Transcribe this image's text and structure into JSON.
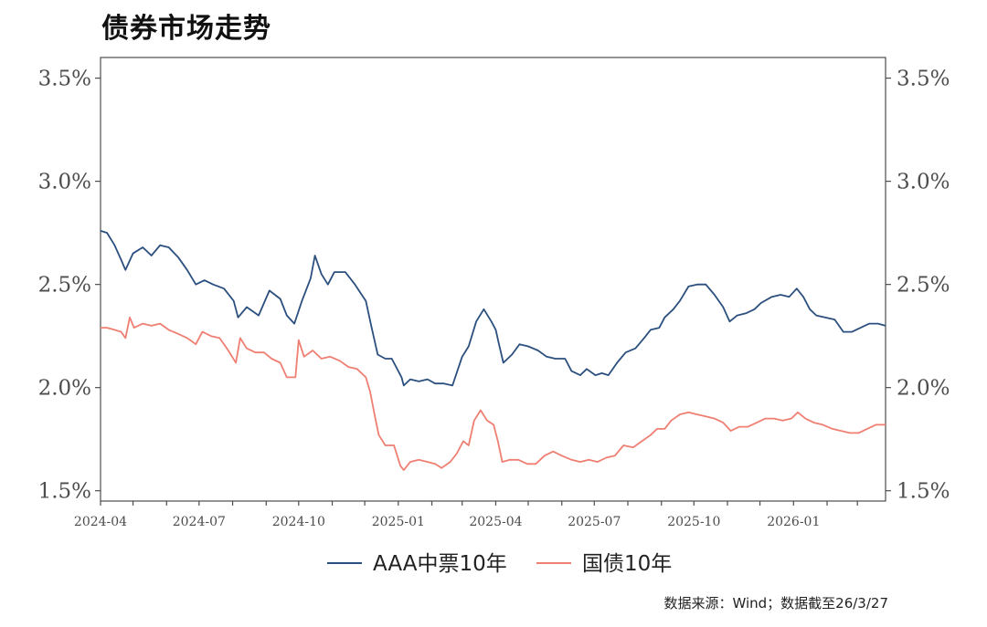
{
  "chart_data": {
    "type": "line",
    "title": "债券市场走势",
    "x_start": "2024-04-01",
    "x_end": "2026-03-27",
    "x_ticks": [
      "2024-04",
      "2024-07",
      "2024-10",
      "2025-01",
      "2025-04",
      "2025-07",
      "2025-10",
      "2026-01"
    ],
    "y_ticks": [
      "1.5%",
      "2.0%",
      "2.5%",
      "3.0%",
      "3.5%"
    ],
    "y_tick_values": [
      1.5,
      2.0,
      2.5,
      3.0,
      3.5
    ],
    "ylim": [
      1.45,
      3.6
    ],
    "grid": false,
    "legend_position": "bottom",
    "series": [
      {
        "name": "AAA中票10年",
        "color": "#2b4f7e",
        "points": [
          [
            "2024-04-01",
            2.76
          ],
          [
            "2024-04-07",
            2.75
          ],
          [
            "2024-04-14",
            2.69
          ],
          [
            "2024-04-20",
            2.62
          ],
          [
            "2024-04-24",
            2.57
          ],
          [
            "2024-05-01",
            2.65
          ],
          [
            "2024-05-10",
            2.68
          ],
          [
            "2024-05-18",
            2.64
          ],
          [
            "2024-05-26",
            2.69
          ],
          [
            "2024-06-03",
            2.68
          ],
          [
            "2024-06-12",
            2.63
          ],
          [
            "2024-06-20",
            2.57
          ],
          [
            "2024-06-28",
            2.5
          ],
          [
            "2024-07-06",
            2.52
          ],
          [
            "2024-07-14",
            2.5
          ],
          [
            "2024-07-24",
            2.48
          ],
          [
            "2024-08-02",
            2.42
          ],
          [
            "2024-08-06",
            2.34
          ],
          [
            "2024-08-14",
            2.39
          ],
          [
            "2024-08-25",
            2.35
          ],
          [
            "2024-09-04",
            2.47
          ],
          [
            "2024-09-14",
            2.43
          ],
          [
            "2024-09-20",
            2.35
          ],
          [
            "2024-09-27",
            2.31
          ],
          [
            "2024-10-04",
            2.42
          ],
          [
            "2024-10-12",
            2.53
          ],
          [
            "2024-10-16",
            2.64
          ],
          [
            "2024-10-22",
            2.55
          ],
          [
            "2024-10-28",
            2.5
          ],
          [
            "2024-11-03",
            2.56
          ],
          [
            "2024-11-13",
            2.56
          ],
          [
            "2024-11-22",
            2.5
          ],
          [
            "2024-12-02",
            2.42
          ],
          [
            "2024-12-07",
            2.3
          ],
          [
            "2024-12-13",
            2.16
          ],
          [
            "2024-12-20",
            2.14
          ],
          [
            "2024-12-26",
            2.14
          ],
          [
            "2025-01-04",
            2.05
          ],
          [
            "2025-01-06",
            2.01
          ],
          [
            "2025-01-12",
            2.04
          ],
          [
            "2025-01-20",
            2.03
          ],
          [
            "2025-01-28",
            2.04
          ],
          [
            "2025-02-04",
            2.02
          ],
          [
            "2025-02-12",
            2.02
          ],
          [
            "2025-02-20",
            2.01
          ],
          [
            "2025-03-01",
            2.15
          ],
          [
            "2025-03-07",
            2.2
          ],
          [
            "2025-03-14",
            2.32
          ],
          [
            "2025-03-21",
            2.38
          ],
          [
            "2025-03-28",
            2.32
          ],
          [
            "2025-04-01",
            2.28
          ],
          [
            "2025-04-04",
            2.21
          ],
          [
            "2025-04-08",
            2.12
          ],
          [
            "2025-04-16",
            2.16
          ],
          [
            "2025-04-23",
            2.21
          ],
          [
            "2025-05-01",
            2.2
          ],
          [
            "2025-05-10",
            2.18
          ],
          [
            "2025-05-18",
            2.15
          ],
          [
            "2025-05-26",
            2.14
          ],
          [
            "2025-06-04",
            2.14
          ],
          [
            "2025-06-10",
            2.08
          ],
          [
            "2025-06-18",
            2.06
          ],
          [
            "2025-06-24",
            2.09
          ],
          [
            "2025-07-02",
            2.06
          ],
          [
            "2025-07-08",
            2.07
          ],
          [
            "2025-07-14",
            2.06
          ],
          [
            "2025-07-22",
            2.12
          ],
          [
            "2025-07-30",
            2.17
          ],
          [
            "2025-08-08",
            2.19
          ],
          [
            "2025-08-16",
            2.24
          ],
          [
            "2025-08-22",
            2.28
          ],
          [
            "2025-08-30",
            2.29
          ],
          [
            "2025-09-04",
            2.34
          ],
          [
            "2025-09-12",
            2.38
          ],
          [
            "2025-09-18",
            2.42
          ],
          [
            "2025-09-26",
            2.49
          ],
          [
            "2025-10-04",
            2.5
          ],
          [
            "2025-10-12",
            2.5
          ],
          [
            "2025-10-20",
            2.45
          ],
          [
            "2025-10-28",
            2.39
          ],
          [
            "2025-11-03",
            2.32
          ],
          [
            "2025-11-10",
            2.35
          ],
          [
            "2025-11-18",
            2.36
          ],
          [
            "2025-11-26",
            2.38
          ],
          [
            "2025-12-02",
            2.41
          ],
          [
            "2025-12-12",
            2.44
          ],
          [
            "2025-12-20",
            2.45
          ],
          [
            "2025-12-28",
            2.44
          ],
          [
            "2026-01-04",
            2.48
          ],
          [
            "2026-01-10",
            2.44
          ],
          [
            "2026-01-16",
            2.38
          ],
          [
            "2026-01-22",
            2.35
          ],
          [
            "2026-01-30",
            2.34
          ],
          [
            "2026-02-08",
            2.33
          ],
          [
            "2026-02-16",
            2.27
          ],
          [
            "2026-02-24",
            2.27
          ],
          [
            "2026-03-04",
            2.29
          ],
          [
            "2026-03-12",
            2.31
          ],
          [
            "2026-03-20",
            2.31
          ],
          [
            "2026-03-27",
            2.3
          ]
        ]
      },
      {
        "name": "国债10年",
        "color": "#ef7f72",
        "points": [
          [
            "2024-04-01",
            2.29
          ],
          [
            "2024-04-07",
            2.29
          ],
          [
            "2024-04-14",
            2.28
          ],
          [
            "2024-04-20",
            2.27
          ],
          [
            "2024-04-24",
            2.24
          ],
          [
            "2024-04-28",
            2.34
          ],
          [
            "2024-05-02",
            2.29
          ],
          [
            "2024-05-10",
            2.31
          ],
          [
            "2024-05-18",
            2.3
          ],
          [
            "2024-05-26",
            2.31
          ],
          [
            "2024-06-03",
            2.28
          ],
          [
            "2024-06-12",
            2.26
          ],
          [
            "2024-06-20",
            2.24
          ],
          [
            "2024-06-28",
            2.21
          ],
          [
            "2024-07-04",
            2.27
          ],
          [
            "2024-07-12",
            2.25
          ],
          [
            "2024-07-20",
            2.24
          ],
          [
            "2024-07-28",
            2.18
          ],
          [
            "2024-08-04",
            2.12
          ],
          [
            "2024-08-08",
            2.24
          ],
          [
            "2024-08-14",
            2.19
          ],
          [
            "2024-08-22",
            2.17
          ],
          [
            "2024-08-30",
            2.17
          ],
          [
            "2024-09-06",
            2.14
          ],
          [
            "2024-09-14",
            2.12
          ],
          [
            "2024-09-20",
            2.05
          ],
          [
            "2024-09-28",
            2.05
          ],
          [
            "2024-10-01",
            2.23
          ],
          [
            "2024-10-06",
            2.15
          ],
          [
            "2024-10-14",
            2.18
          ],
          [
            "2024-10-22",
            2.14
          ],
          [
            "2024-10-30",
            2.15
          ],
          [
            "2024-11-08",
            2.13
          ],
          [
            "2024-11-16",
            2.1
          ],
          [
            "2024-11-24",
            2.09
          ],
          [
            "2024-12-02",
            2.05
          ],
          [
            "2024-12-06",
            1.98
          ],
          [
            "2024-12-10",
            1.87
          ],
          [
            "2024-12-14",
            1.77
          ],
          [
            "2024-12-20",
            1.72
          ],
          [
            "2024-12-28",
            1.72
          ],
          [
            "2025-01-03",
            1.62
          ],
          [
            "2025-01-06",
            1.6
          ],
          [
            "2025-01-12",
            1.64
          ],
          [
            "2025-01-20",
            1.65
          ],
          [
            "2025-01-28",
            1.64
          ],
          [
            "2025-02-04",
            1.63
          ],
          [
            "2025-02-10",
            1.61
          ],
          [
            "2025-02-18",
            1.64
          ],
          [
            "2025-02-24",
            1.68
          ],
          [
            "2025-03-02",
            1.74
          ],
          [
            "2025-03-07",
            1.72
          ],
          [
            "2025-03-12",
            1.84
          ],
          [
            "2025-03-18",
            1.89
          ],
          [
            "2025-03-24",
            1.84
          ],
          [
            "2025-03-30",
            1.82
          ],
          [
            "2025-04-03",
            1.74
          ],
          [
            "2025-04-07",
            1.64
          ],
          [
            "2025-04-14",
            1.65
          ],
          [
            "2025-04-22",
            1.65
          ],
          [
            "2025-04-30",
            1.63
          ],
          [
            "2025-05-08",
            1.63
          ],
          [
            "2025-05-16",
            1.67
          ],
          [
            "2025-05-24",
            1.69
          ],
          [
            "2025-06-01",
            1.67
          ],
          [
            "2025-06-10",
            1.65
          ],
          [
            "2025-06-18",
            1.64
          ],
          [
            "2025-06-26",
            1.65
          ],
          [
            "2025-07-04",
            1.64
          ],
          [
            "2025-07-12",
            1.66
          ],
          [
            "2025-07-20",
            1.67
          ],
          [
            "2025-07-28",
            1.72
          ],
          [
            "2025-08-06",
            1.71
          ],
          [
            "2025-08-14",
            1.74
          ],
          [
            "2025-08-22",
            1.77
          ],
          [
            "2025-08-28",
            1.8
          ],
          [
            "2025-09-04",
            1.8
          ],
          [
            "2025-09-10",
            1.84
          ],
          [
            "2025-09-18",
            1.87
          ],
          [
            "2025-09-26",
            1.88
          ],
          [
            "2025-10-04",
            1.87
          ],
          [
            "2025-10-12",
            1.86
          ],
          [
            "2025-10-20",
            1.85
          ],
          [
            "2025-10-28",
            1.83
          ],
          [
            "2025-11-04",
            1.79
          ],
          [
            "2025-11-12",
            1.81
          ],
          [
            "2025-11-20",
            1.81
          ],
          [
            "2025-11-28",
            1.83
          ],
          [
            "2025-12-06",
            1.85
          ],
          [
            "2025-12-14",
            1.85
          ],
          [
            "2025-12-22",
            1.84
          ],
          [
            "2025-12-30",
            1.85
          ],
          [
            "2026-01-05",
            1.88
          ],
          [
            "2026-01-12",
            1.85
          ],
          [
            "2026-01-20",
            1.83
          ],
          [
            "2026-01-28",
            1.82
          ],
          [
            "2026-02-06",
            1.8
          ],
          [
            "2026-02-14",
            1.79
          ],
          [
            "2026-02-22",
            1.78
          ],
          [
            "2026-03-02",
            1.78
          ],
          [
            "2026-03-10",
            1.8
          ],
          [
            "2026-03-18",
            1.82
          ],
          [
            "2026-03-27",
            1.82
          ]
        ]
      }
    ]
  },
  "source_note": "数据来源：Wind；数据截至26/3/27"
}
